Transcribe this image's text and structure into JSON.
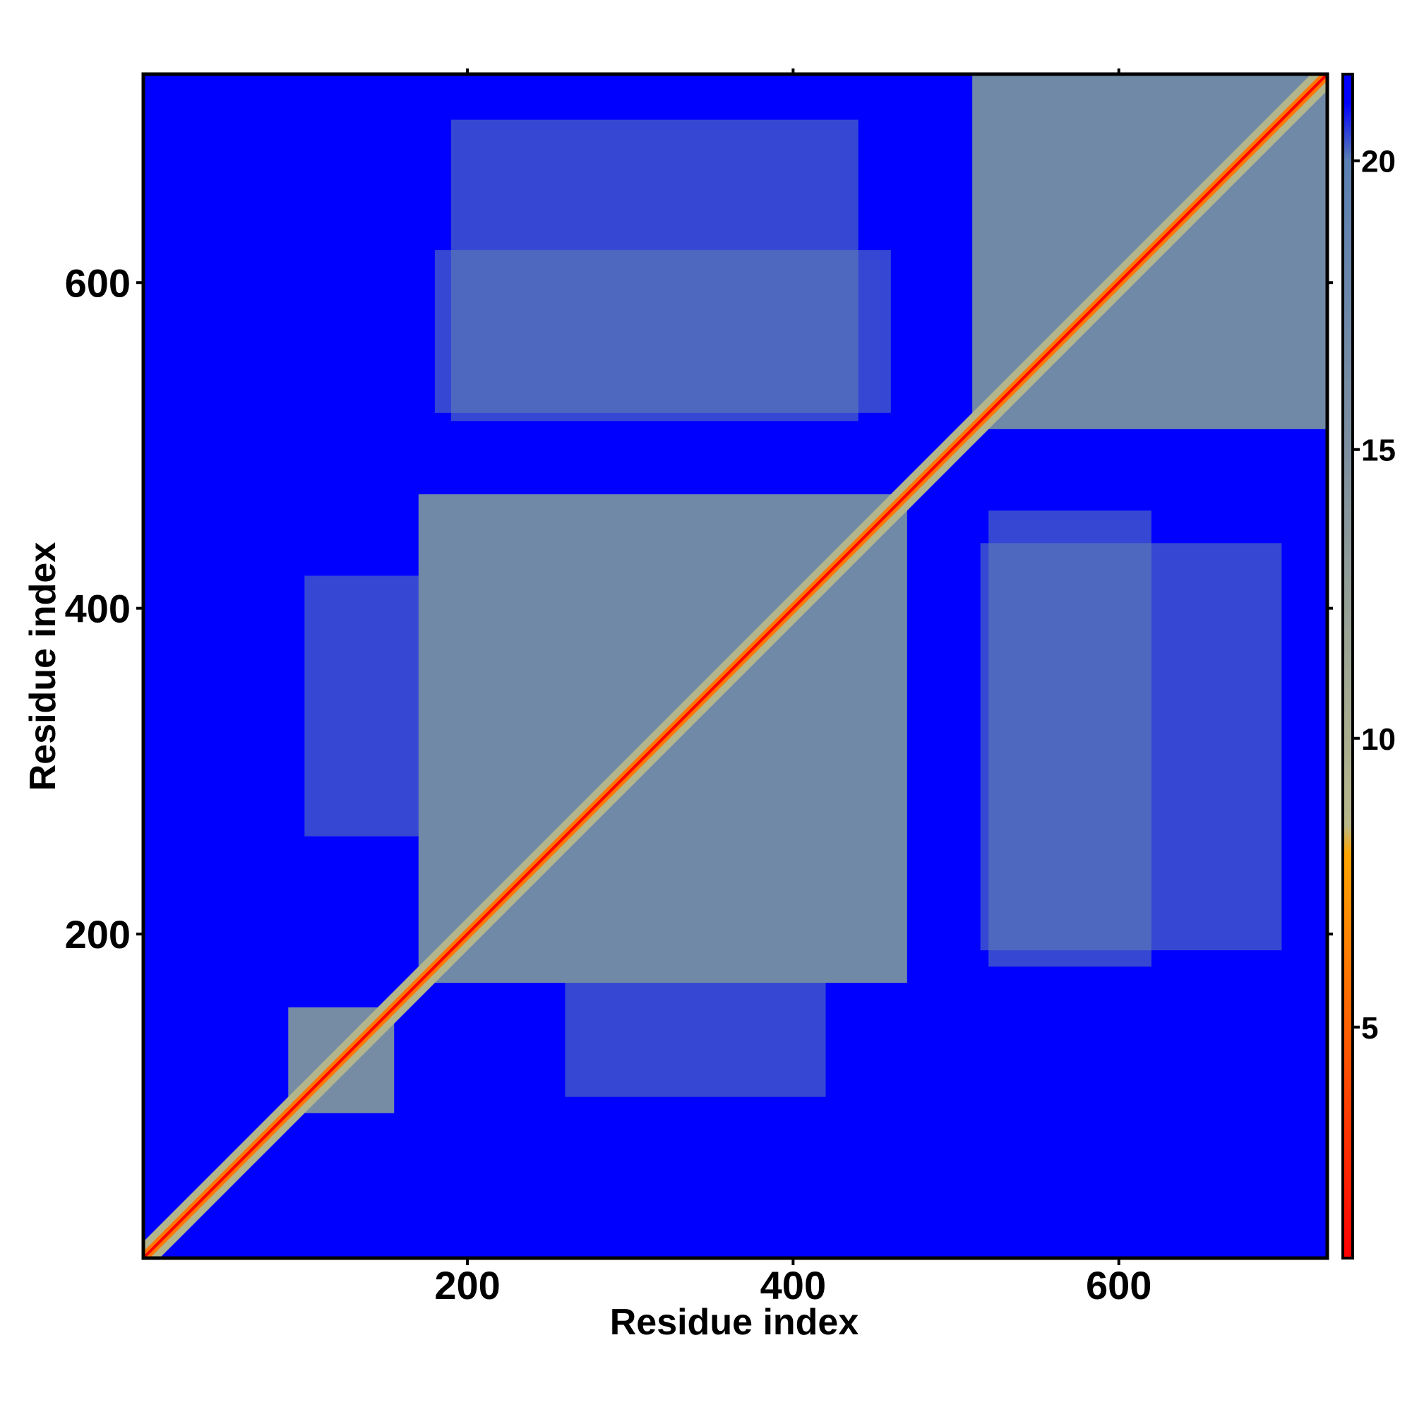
{
  "chart_data": {
    "type": "heatmap",
    "title": "",
    "xlabel": "Residue index",
    "ylabel": "Residue index",
    "xlim": [
      1,
      728
    ],
    "ylim": [
      1,
      728
    ],
    "x_ticks": [
      200,
      400,
      600
    ],
    "x_tick_labels": [
      "200",
      "400",
      "600"
    ],
    "y_ticks": [
      200,
      400,
      600
    ],
    "y_tick_labels": [
      "200",
      "400",
      "600"
    ],
    "grid": false,
    "legend": "colorbar-right",
    "colorbar": {
      "range": [
        1,
        21.5
      ],
      "ticks": [
        5,
        10,
        15,
        20
      ],
      "tick_labels": [
        "5",
        "10",
        "15",
        "20"
      ],
      "stops": [
        {
          "value": 1,
          "color": "#ff0000"
        },
        {
          "value": 5,
          "color": "#ff6000"
        },
        {
          "value": 8,
          "color": "#ffa500"
        },
        {
          "value": 8.5,
          "color": "#b8b88a"
        },
        {
          "value": 15,
          "color": "#7d8fa0"
        },
        {
          "value": 20,
          "color": "#5b80b2"
        },
        {
          "value": 21,
          "color": "#0000ff"
        }
      ]
    },
    "background_color": "#0000ff",
    "diagonal_color": "#ff0000",
    "domains": [
      {
        "from": 90,
        "to": 155,
        "level": 16
      },
      {
        "from": 170,
        "to": 470,
        "level": 17
      },
      {
        "from": 510,
        "to": 728,
        "level": 17
      }
    ],
    "inter_domain_blocks": [
      {
        "x": [
          180,
          460
        ],
        "y": [
          520,
          620
        ],
        "level": 19
      },
      {
        "x": [
          515,
          700
        ],
        "y": [
          190,
          440
        ],
        "level": 19
      },
      {
        "x": [
          260,
          420
        ],
        "y": [
          100,
          180
        ],
        "level": 19
      }
    ]
  }
}
